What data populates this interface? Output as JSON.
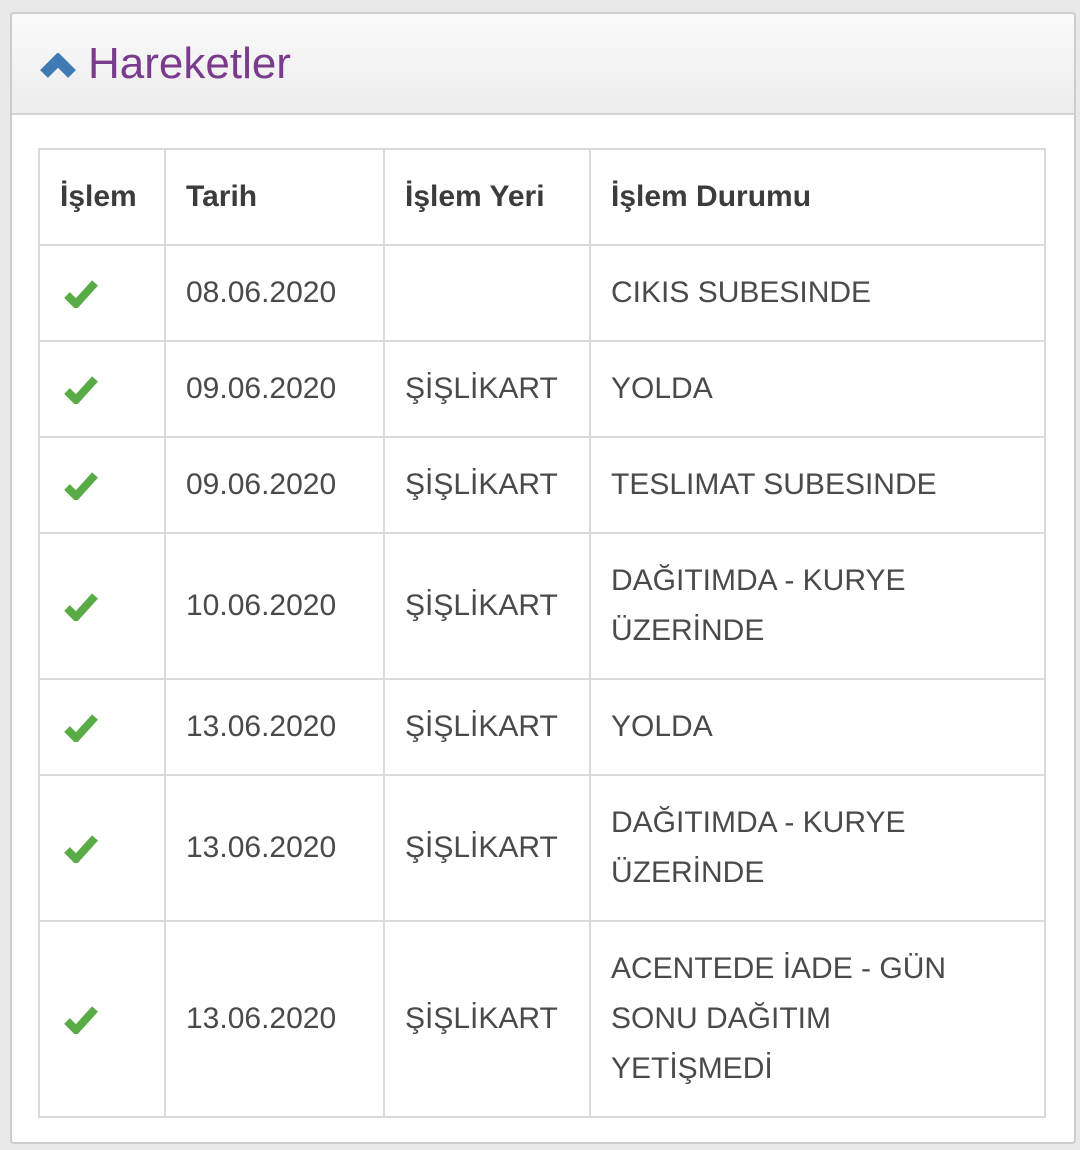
{
  "panel": {
    "title": "Hareketler",
    "collapse_icon": "chevron-up-icon",
    "collapsed": false
  },
  "table": {
    "columns": [
      {
        "key": "islem",
        "label": "İşlem"
      },
      {
        "key": "tarih",
        "label": "Tarih"
      },
      {
        "key": "islem_yeri",
        "label": "İşlem Yeri"
      },
      {
        "key": "islem_durumu",
        "label": "İşlem Durumu"
      }
    ],
    "rows": [
      {
        "done": true,
        "tarih": "08.06.2020",
        "islem_yeri": "",
        "islem_durumu": "CIKIS SUBESINDE"
      },
      {
        "done": true,
        "tarih": "09.06.2020",
        "islem_yeri": "ŞİŞLİKART",
        "islem_durumu": "YOLDA"
      },
      {
        "done": true,
        "tarih": "09.06.2020",
        "islem_yeri": "ŞİŞLİKART",
        "islem_durumu": "TESLIMAT SUBESINDE"
      },
      {
        "done": true,
        "tarih": "10.06.2020",
        "islem_yeri": "ŞİŞLİKART",
        "islem_durumu": "DAĞITIMDA - KURYE\nÜZERİNDE"
      },
      {
        "done": true,
        "tarih": "13.06.2020",
        "islem_yeri": "ŞİŞLİKART",
        "islem_durumu": "YOLDA"
      },
      {
        "done": true,
        "tarih": "13.06.2020",
        "islem_yeri": "ŞİŞLİKART",
        "islem_durumu": "DAĞITIMDA - KURYE\nÜZERİNDE"
      },
      {
        "done": true,
        "tarih": "13.06.2020",
        "islem_yeri": "ŞİŞLİKART",
        "islem_durumu": "ACENTEDE İADE - GÜN\nSONU DAĞITIM\nYETİŞMEDİ"
      }
    ],
    "check_icon": "check-icon"
  },
  "colors": {
    "page_background": "#e9e9e9",
    "panel_border": "#cdcdcd",
    "table_border": "#dadada",
    "title_purple": "#7a3b8d",
    "chevron_blue": "#3e7ab4",
    "check_green": "#58ab45",
    "text_dark": "#3c3c3c",
    "text_body": "#4a4a4a"
  }
}
